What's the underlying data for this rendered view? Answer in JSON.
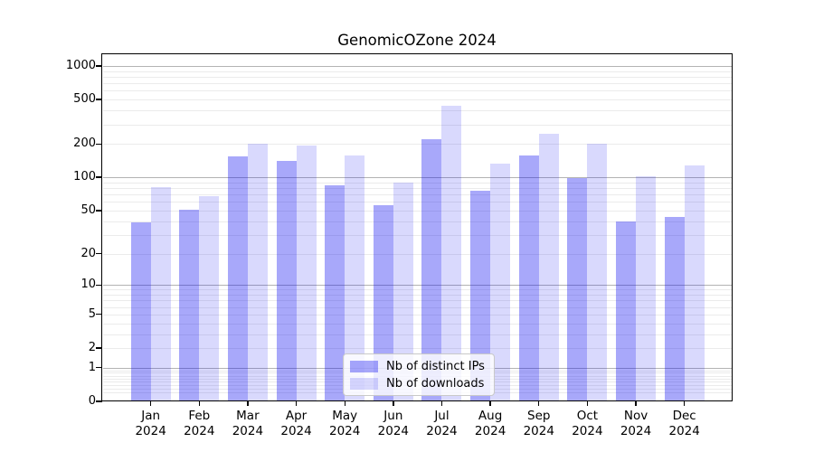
{
  "chart_data": {
    "type": "bar",
    "title": "GenomicOZone 2024",
    "categories": [
      [
        "Jan",
        "2024"
      ],
      [
        "Feb",
        "2024"
      ],
      [
        "Mar",
        "2024"
      ],
      [
        "Apr",
        "2024"
      ],
      [
        "May",
        "2024"
      ],
      [
        "Jun",
        "2024"
      ],
      [
        "Jul",
        "2024"
      ],
      [
        "Aug",
        "2024"
      ],
      [
        "Sep",
        "2024"
      ],
      [
        "Oct",
        "2024"
      ],
      [
        "Nov",
        "2024"
      ],
      [
        "Dec",
        "2024"
      ]
    ],
    "series": [
      {
        "key": "distinct-ips",
        "name": "Nb of distinct IPs",
        "color": "rgba(0,0,240,0.34)",
        "values": [
          39,
          51,
          155,
          141,
          84,
          56,
          220,
          75,
          156,
          98,
          40,
          44
        ]
      },
      {
        "key": "downloads",
        "name": "Nb of downloads",
        "color": "rgba(0,0,240,0.15)",
        "values": [
          81,
          68,
          201,
          193,
          157,
          90,
          440,
          132,
          245,
          200,
          102,
          127
        ]
      }
    ],
    "y_axis": {
      "scale": "log1p-base10",
      "tick_labels": [
        1000,
        500,
        200,
        100,
        50,
        20,
        10,
        5,
        2,
        1,
        0
      ],
      "top_value": 1260
    },
    "grid": {
      "major_values": [
        1,
        10,
        100,
        1000
      ],
      "minor_values": [
        0.2,
        0.3,
        0.4,
        0.5,
        0.6,
        0.7,
        0.8,
        0.9,
        2,
        3,
        4,
        5,
        6,
        7,
        8,
        9,
        20,
        30,
        40,
        50,
        60,
        70,
        80,
        90,
        200,
        300,
        400,
        500,
        600,
        700,
        800,
        900
      ],
      "major_color": "#b3b3b3",
      "minor_color": "#ebebeb"
    },
    "legend": {
      "position": "lower-center"
    }
  }
}
